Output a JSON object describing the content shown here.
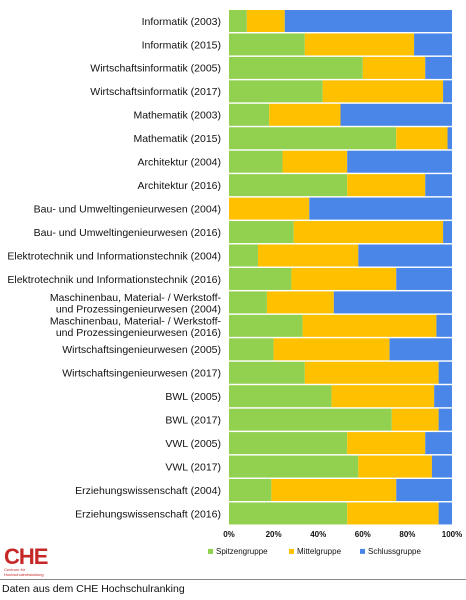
{
  "chart_data": {
    "type": "bar",
    "stacked": true,
    "orientation": "horizontal",
    "percent": true,
    "categories": [
      "Informatik (2003)",
      "Informatik (2015)",
      "Wirtschaftsinformatik (2005)",
      "Wirtschaftsinformatik (2017)",
      "Mathematik (2003)",
      "Mathematik (2015)",
      "Architektur (2004)",
      "Architektur (2016)",
      "Bau- und Umweltingenieurwesen (2004)",
      "Bau- und Umweltingenieurwesen (2016)",
      "Elektrotechnik und Informationstechnik (2004)",
      "Elektrotechnik und Informationstechnik (2016)",
      "Maschinenbau, Material- / Werkstoff-\nund Prozessingenieurwesen (2004)",
      "Maschinenbau, Material- / Werkstoff-\nund Prozessingenieurwesen (2016)",
      "Wirtschaftsingenieurwesen (2005)",
      "Wirtschaftsingenieurwesen (2017)",
      "BWL (2005)",
      "BWL (2017)",
      "VWL (2005)",
      "VWL (2017)",
      "Erziehungswissenschaft (2004)",
      "Erziehungswissenschaft (2016)"
    ],
    "series": [
      {
        "name": "Spitzengruppe",
        "color": "#92d050",
        "values": [
          8,
          34,
          60,
          42,
          18,
          75,
          24,
          53,
          0,
          29,
          13,
          28,
          17,
          33,
          20,
          34,
          46,
          73,
          53,
          58,
          19,
          53
        ]
      },
      {
        "name": "Mittelgruppe",
        "color": "#ffc000",
        "values": [
          17,
          49,
          28,
          54,
          32,
          23,
          29,
          35,
          36,
          67,
          45,
          47,
          30,
          60,
          52,
          60,
          46,
          21,
          35,
          33,
          56,
          41
        ]
      },
      {
        "name": "Schlussgruppe",
        "color": "#4a86e8",
        "values": [
          75,
          17,
          12,
          4,
          50,
          2,
          47,
          12,
          64,
          4,
          42,
          25,
          53,
          7,
          28,
          6,
          8,
          6,
          12,
          9,
          25,
          6
        ]
      }
    ],
    "x_ticks": [
      "0%",
      "20%",
      "40%",
      "60%",
      "80%",
      "100%"
    ],
    "xlim": [
      0,
      100
    ],
    "grid": false,
    "legend": "bottom",
    "title": "",
    "xlabel": "",
    "ylabel": ""
  },
  "footer": {
    "logo_text": "CHE",
    "logo_subtext": "Centrum für\nHochschulentwicklung",
    "source": "Daten aus dem CHE Hochschulranking"
  }
}
